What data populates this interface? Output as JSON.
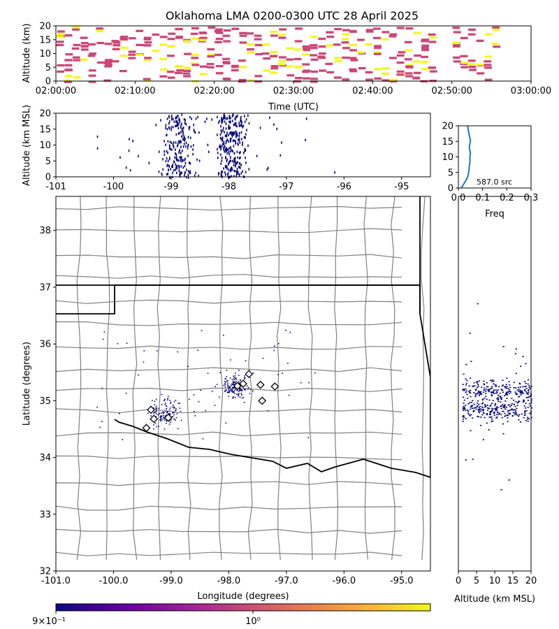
{
  "chart_data": [
    {
      "type": "heatmap",
      "panel": "time-height",
      "title": "Oklahoma LMA 0200-0300 UTC 28 April 2025",
      "xlabel": "Time (UTC)",
      "ylabel": "Altitude (km)",
      "x_ticks": [
        "02:00:00",
        "02:10:00",
        "02:20:00",
        "02:30:00",
        "02:40:00",
        "02:50:00",
        "03:00:00"
      ],
      "y_ticks": [
        "0",
        "5",
        "10",
        "15",
        "20"
      ],
      "xlim": [
        "02:00:00",
        "03:00:00"
      ],
      "ylim": [
        0,
        20
      ]
    },
    {
      "type": "scatter",
      "panel": "longitude-altitude",
      "ylabel": "Altitude (km MSL)",
      "x_ticks": [
        "-101",
        "-100",
        "-99",
        "-98",
        "-97",
        "-96",
        "-95"
      ],
      "y_ticks": [
        "0",
        "5",
        "10",
        "15",
        "20"
      ],
      "xlim": [
        -101,
        -94.5
      ],
      "ylim": [
        0,
        20
      ]
    },
    {
      "type": "line",
      "panel": "altitude-histogram",
      "xlabel": "Freq",
      "annotation": "587.0 src",
      "x_ticks": [
        "0.0",
        "0.1",
        "0.2",
        "0.3"
      ],
      "y_ticks": [
        "0",
        "5",
        "10",
        "15",
        "20"
      ],
      "xlim": [
        0,
        0.3
      ],
      "ylim": [
        0,
        20
      ],
      "series": [
        {
          "altitude": [
            0,
            1,
            2,
            3,
            4,
            5,
            6,
            7,
            8,
            9,
            10,
            11,
            12,
            13,
            14,
            15,
            16,
            17,
            18,
            19,
            20
          ],
          "freq": [
            0.012,
            0.02,
            0.028,
            0.035,
            0.04,
            0.042,
            0.044,
            0.045,
            0.047,
            0.048,
            0.047,
            0.05,
            0.048,
            0.045,
            0.047,
            0.05,
            0.048,
            0.045,
            0.042,
            0.04,
            0.038
          ]
        }
      ]
    },
    {
      "type": "scatter",
      "panel": "plan-view-map",
      "xlabel": "Longitude (degrees)",
      "ylabel": "Latitude (degrees)",
      "x_ticks": [
        "-101.0",
        "-100.0",
        "-99.0",
        "-98.0",
        "-97.0",
        "-96.0",
        "-95.0"
      ],
      "y_ticks": [
        "32",
        "33",
        "34",
        "35",
        "36",
        "37",
        "38"
      ],
      "xlim": [
        -101,
        -94.5
      ],
      "ylim": [
        32,
        38.6
      ],
      "stations": [
        {
          "lon": -97.65,
          "lat": 35.47
        },
        {
          "lon": -97.75,
          "lat": 35.3
        },
        {
          "lon": -97.85,
          "lat": 35.26
        },
        {
          "lon": -97.45,
          "lat": 35.28
        },
        {
          "lon": -97.2,
          "lat": 35.25
        },
        {
          "lon": -97.42,
          "lat": 35.0
        },
        {
          "lon": -99.35,
          "lat": 34.84
        },
        {
          "lon": -99.3,
          "lat": 34.68
        },
        {
          "lon": -99.05,
          "lat": 34.7
        },
        {
          "lon": -99.43,
          "lat": 34.52
        }
      ]
    },
    {
      "type": "scatter",
      "panel": "altitude-latitude",
      "xlabel": "Altitude (km MSL)",
      "x_ticks": [
        "0",
        "5",
        "10",
        "15",
        "20"
      ],
      "xlim": [
        0,
        20
      ],
      "ylim": [
        32,
        38.6
      ]
    },
    {
      "type": "heatmap",
      "panel": "colorbar",
      "scale": "log",
      "ticks": [
        "9×10⁻¹",
        "10⁰"
      ],
      "colormap": "plasma",
      "colors": [
        "#0d0887",
        "#6a00a8",
        "#b12a90",
        "#e16462",
        "#fca636",
        "#f0f921"
      ]
    }
  ],
  "colors": {
    "point": "#00007a",
    "heat_low": "#cc4778",
    "heat_high": "#f0f921",
    "hist_line": "#1f77b4",
    "county_line": "#808080",
    "state_line": "#000000"
  }
}
